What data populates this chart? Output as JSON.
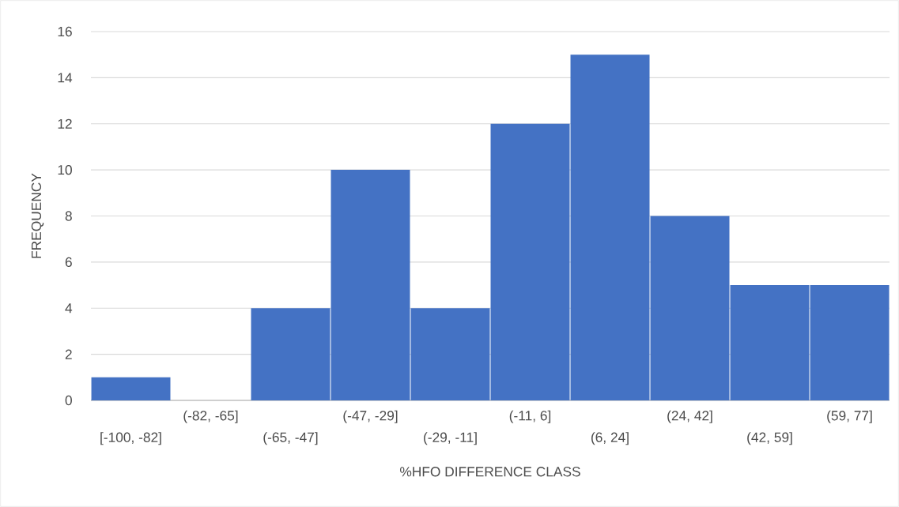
{
  "chart_data": {
    "type": "bar",
    "xlabel": "%HFO DIFFERENCE CLASS",
    "ylabel": "FREQUENCY",
    "categories": [
      "[-100, -82]",
      "(-82, -65]",
      "(-65, -47]",
      "(-47, -29]",
      "(-29, -11]",
      "(-11, 6]",
      "(6, 24]",
      "(24, 42]",
      "(42, 59]",
      "(59, 77]"
    ],
    "values": [
      1,
      0,
      4,
      10,
      4,
      12,
      15,
      8,
      5,
      5
    ],
    "color": "#4472c4",
    "ylim": [
      0,
      16
    ],
    "yticks": [
      0,
      2,
      4,
      6,
      8,
      10,
      12,
      14,
      16
    ],
    "grid": "y"
  }
}
